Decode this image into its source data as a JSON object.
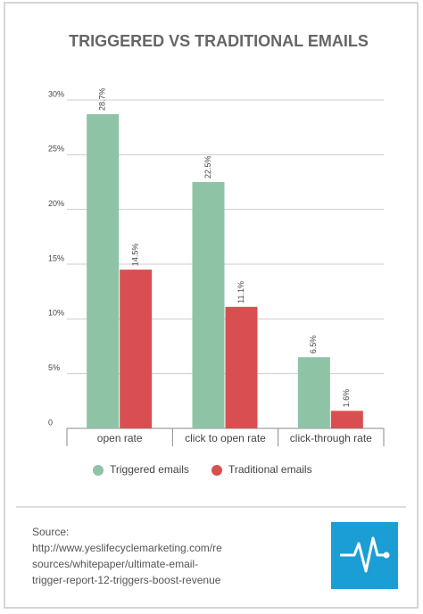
{
  "chart_data": {
    "type": "bar",
    "title": "TRIGGERED VS TRADITIONAL EMAILS",
    "categories": [
      "open rate",
      "click to open rate",
      "click-through rate"
    ],
    "series": [
      {
        "name": "Triggered emails",
        "color": "#8ec3a6",
        "values": [
          28.7,
          22.5,
          6.5
        ],
        "value_labels": [
          "28.7%",
          "22.5%",
          "6.5%"
        ]
      },
      {
        "name": "Traditional emails",
        "color": "#d94f51",
        "values": [
          14.5,
          11.1,
          1.6
        ],
        "value_labels": [
          "14.5%",
          "11.1%",
          "1.6%"
        ]
      }
    ],
    "ylim": [
      0,
      30
    ],
    "yticks": [
      0,
      {
        "value": 5,
        "label": "5%"
      },
      {
        "value": 10,
        "label": "10%"
      },
      {
        "value": 15,
        "label": "15%"
      },
      {
        "value": 20,
        "label": "20%"
      },
      {
        "value": 25,
        "label": "25%"
      },
      {
        "value": 30,
        "label": "30%"
      }
    ],
    "grid": true,
    "legend": "bottom"
  },
  "footer": {
    "label": "Source:",
    "lines": [
      "http://www.yeslifecyclemarketing.com/re",
      "sources/whitepaper/ultimate-email-",
      "trigger-report-12-triggers-boost-revenue"
    ]
  }
}
